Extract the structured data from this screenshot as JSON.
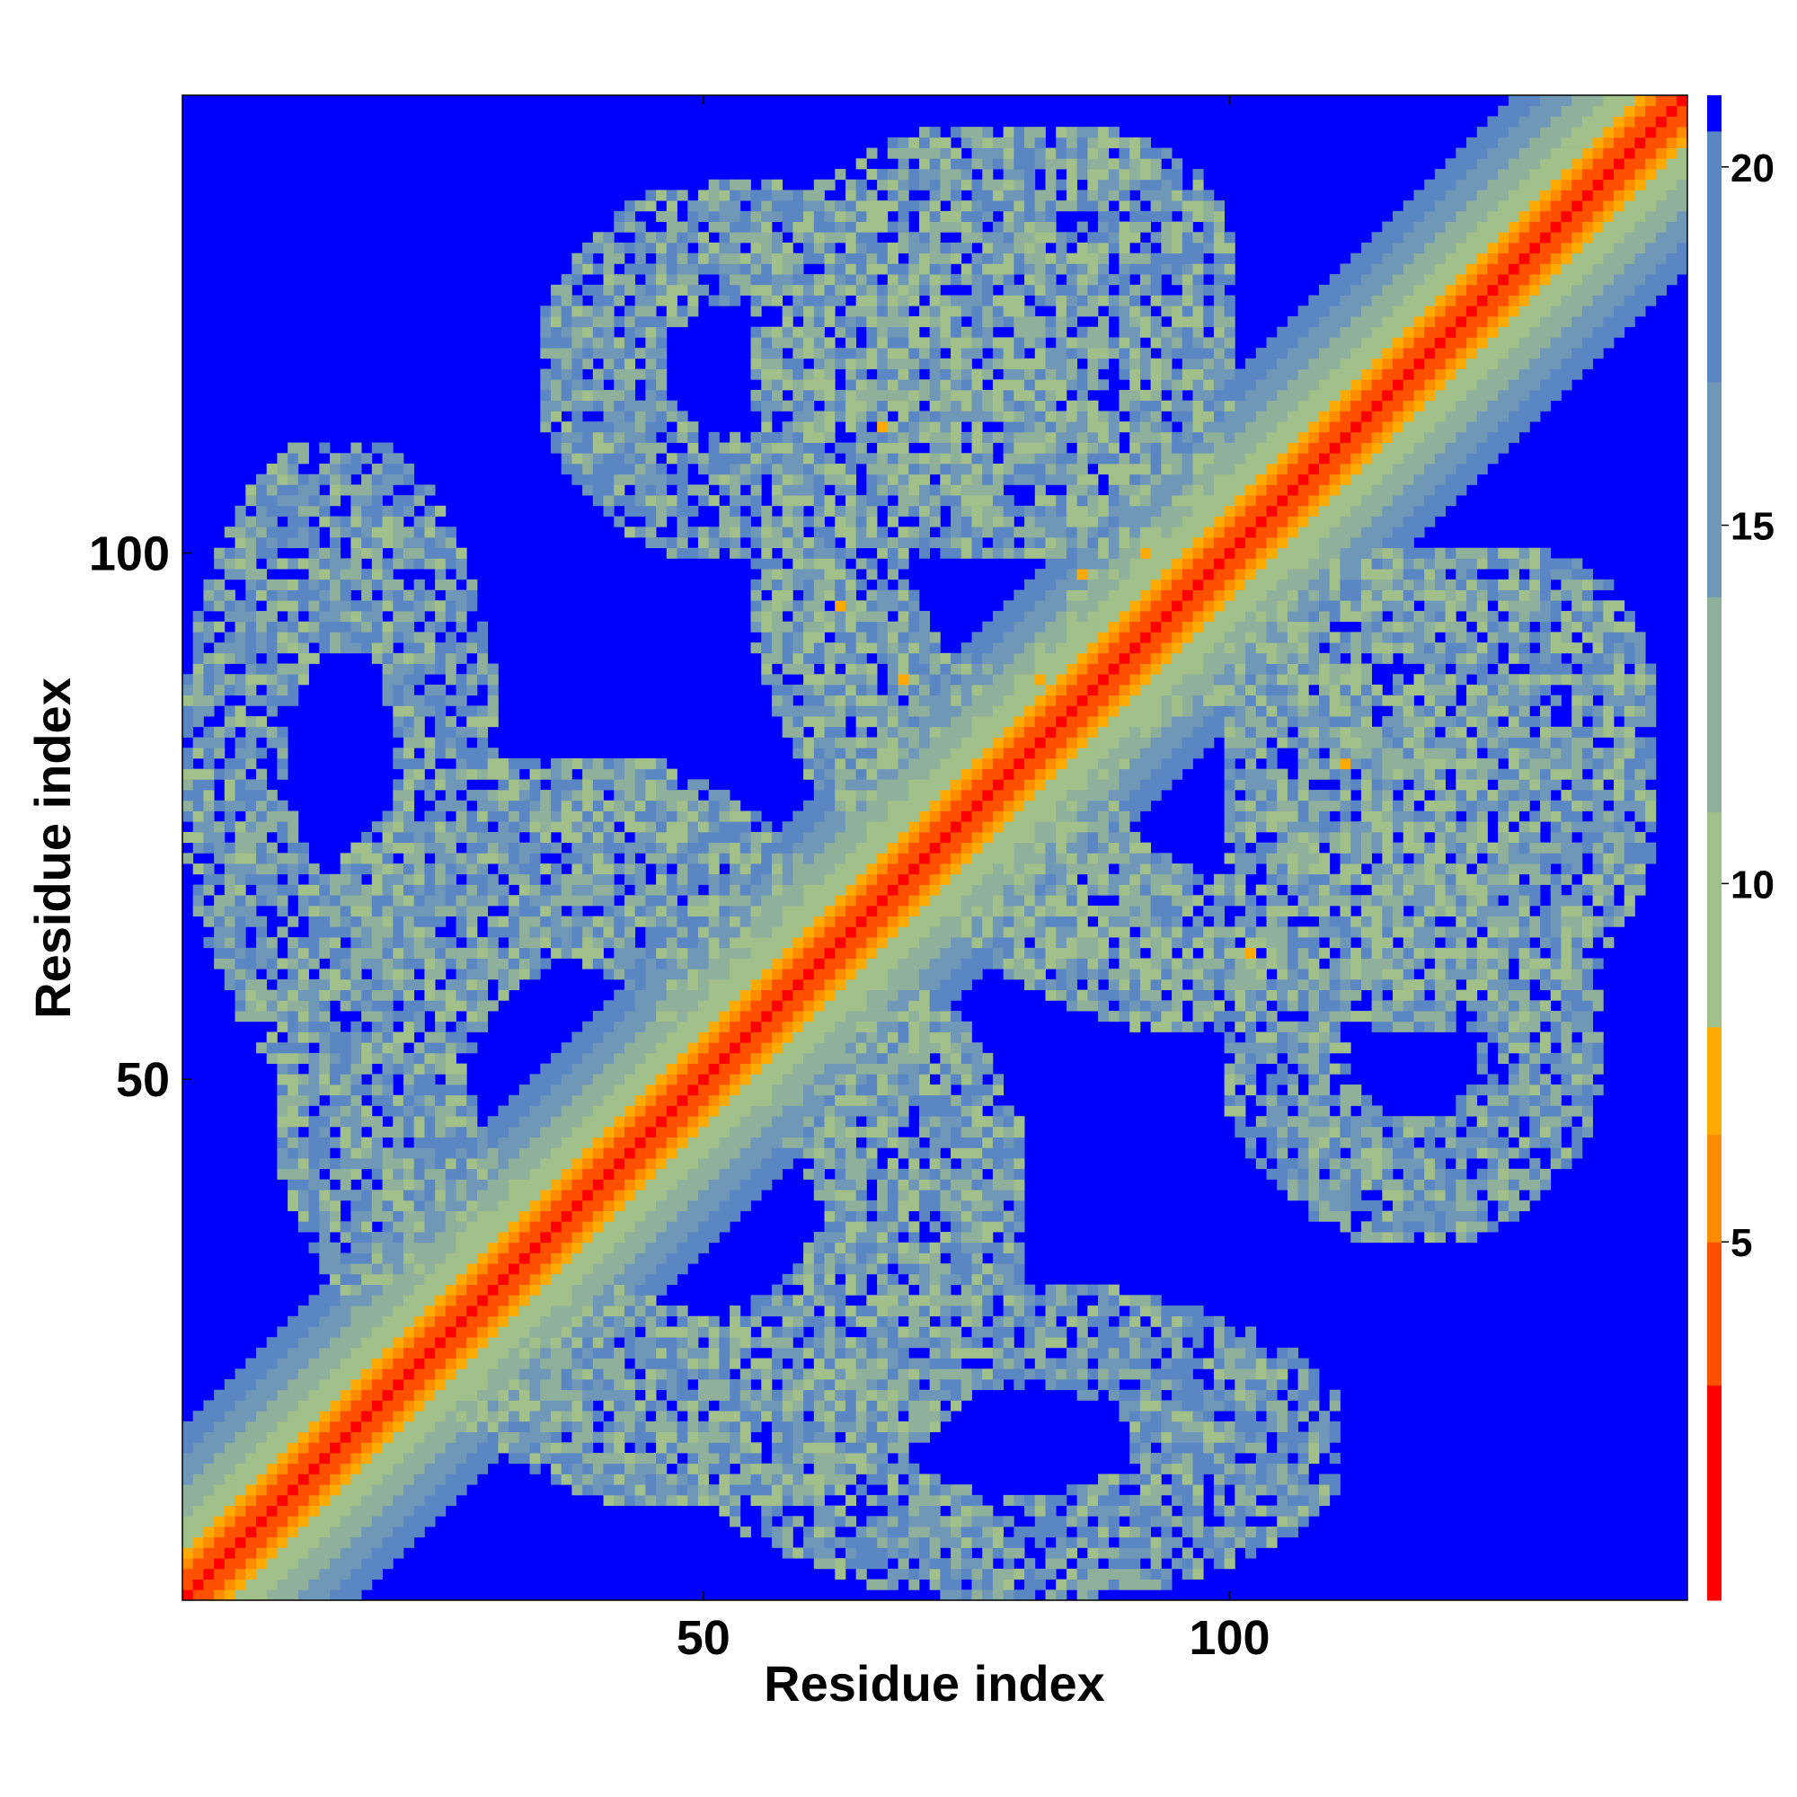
{
  "chart_data": {
    "type": "heatmap",
    "title": "",
    "xlabel": "Residue index",
    "ylabel": "Residue index",
    "n_residues": 143,
    "x_range": [
      1,
      143
    ],
    "y_range": [
      1,
      143
    ],
    "x_ticks": [
      50,
      100
    ],
    "y_ticks": [
      50,
      100
    ],
    "grid": false,
    "legend": "colorbar-right",
    "colorbar": {
      "range": [
        0,
        21
      ],
      "ticks": [
        5,
        10,
        15,
        20
      ],
      "colors": {
        "red": "#ff0000",
        "orange_red": "#ff5000",
        "orange": "#ff8c00",
        "amber": "#ffaa00",
        "pale_green": "#a2c08a",
        "sage": "#8fb09a",
        "steel_blue": "#6f98b8",
        "blue_grey": "#5b86c4",
        "background_blue": "#0000ff"
      }
    },
    "structure": {
      "diagonal": "distance 3.8 Å between consecutive residues, rising with |i-j| until saturating at ~21 Å beyond a band of ~15 residues",
      "contact_regions": [
        {
          "i": [
            1,
            30
          ],
          "j": [
            50,
            110
          ],
          "mean_distance": 15
        },
        {
          "i": [
            10,
            65
          ],
          "j": [
            20,
            80
          ],
          "mean_distance": 14
        },
        {
          "i": [
            55,
            100
          ],
          "j": [
            70,
            130
          ],
          "mean_distance": 13
        },
        {
          "i": [
            70,
            100
          ],
          "j": [
            115,
            140
          ],
          "mean_distance": 14
        },
        {
          "i": [
            100,
            140
          ],
          "j": [
            55,
            100
          ],
          "mean_distance": 14
        },
        {
          "i": [
            35,
            70
          ],
          "j": [
            100,
            135
          ],
          "mean_distance": 15
        }
      ]
    }
  }
}
